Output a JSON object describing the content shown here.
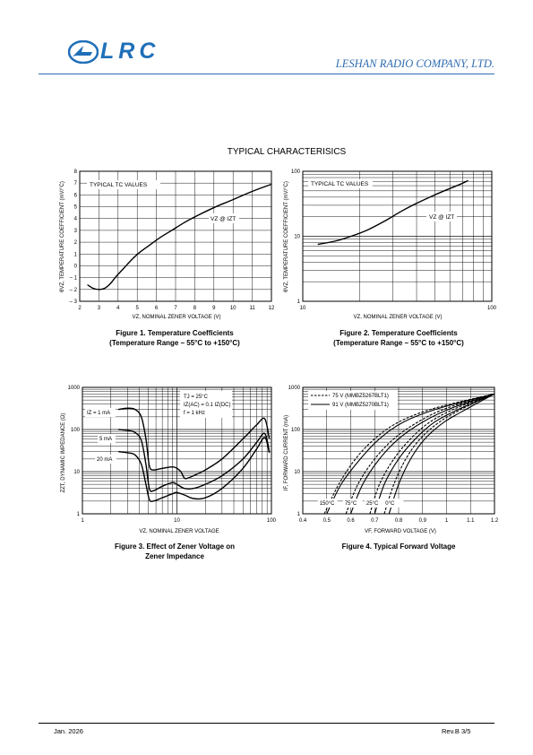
{
  "header": {
    "logo_text": "LRC",
    "company": "LESHAN RADIO COMPANY, LTD."
  },
  "section_title": "TYPICAL CHARACTERISICS",
  "figures": {
    "fig1": {
      "caption_line1": "Figure 1. Temperature Coefficients",
      "caption_line2": "(Temperature Range – 55°C to +150°C)"
    },
    "fig2": {
      "caption_line1": "Figure 2. Temperature Coefficients",
      "caption_line2": "(Temperature Range – 55°C to +150°C)"
    },
    "fig3": {
      "caption_line1": "Figure 3. Effect of Zener Voltage on",
      "caption_line2": "Zener Impedance"
    },
    "fig4": {
      "caption_line1": "Figure 4. Typical Forward Voltage"
    }
  },
  "footer": {
    "date": "Jan. 2026",
    "revision": "Rev.B  3/5"
  },
  "chart_data": [
    {
      "type": "line",
      "title": "",
      "xlabel": "VZ, NOMINAL ZENER VOLTAGE (V)",
      "ylabel": "θVZ, TEMPERATURE COEFFICIENT (mV/°C)",
      "xlim": [
        2,
        12
      ],
      "ylim": [
        -3,
        8
      ],
      "xticks": [
        2,
        3,
        4,
        5,
        6,
        7,
        8,
        9,
        10,
        11,
        12
      ],
      "yticks": [
        -3,
        -2,
        -1,
        0,
        1,
        2,
        3,
        4,
        5,
        6,
        7,
        8
      ],
      "grid": true,
      "annotations": [
        "TYPICAL TC VALUES",
        "VZ @ IZT"
      ],
      "series": [
        {
          "x": [
            2.4,
            2.7,
            3.0,
            3.3,
            3.6,
            3.9,
            4.3,
            4.7,
            5.1,
            5.6,
            6.2,
            6.8,
            7.5,
            8.2,
            9.1,
            10,
            11,
            12
          ],
          "values": [
            -1.6,
            -1.9,
            -2.0,
            -1.9,
            -1.5,
            -0.9,
            -0.2,
            0.5,
            1.1,
            1.7,
            2.4,
            3.0,
            3.7,
            4.3,
            5.0,
            5.6,
            6.3,
            6.9
          ]
        }
      ]
    },
    {
      "type": "line",
      "title": "",
      "xlabel": "VZ, NOMINAL ZENER VOLTAGE (V)",
      "ylabel": "θVZ, TEMPERATURE COEFFICIENT (mV/°C)",
      "xscale": "log",
      "yscale": "log",
      "xlim": [
        10,
        100
      ],
      "ylim": [
        1,
        100
      ],
      "xticks": [
        10,
        100
      ],
      "yticks": [
        1,
        10,
        100
      ],
      "grid": true,
      "annotations": [
        "TYPICAL TC VALUES",
        "VZ @ IZT"
      ],
      "series": [
        {
          "x": [
            12,
            15,
            18,
            22,
            27,
            33,
            39,
            47,
            56,
            68,
            75
          ],
          "values": [
            7.5,
            8.5,
            10,
            12.5,
            17,
            24,
            31,
            40,
            50,
            63,
            72
          ]
        }
      ]
    },
    {
      "type": "line",
      "title": "",
      "xlabel": "VZ, NOMINAL ZENER VOLTAGE",
      "ylabel": "ZZT, DYNAMIC IMPEDANCE (Ω)",
      "xscale": "log",
      "yscale": "log",
      "xlim": [
        1,
        100
      ],
      "ylim": [
        1,
        1000
      ],
      "xticks": [
        1,
        10,
        100
      ],
      "yticks": [
        1,
        10,
        100,
        1000
      ],
      "grid": true,
      "annotations": [
        "TJ = 25°C",
        "IZ(AC) = 0.1 IZ(DC)",
        "f = 1 kHz"
      ],
      "series": [
        {
          "name": "IZ = 1 mA",
          "x": [
            2.4,
            3,
            3.6,
            4.2,
            4.7,
            5.1,
            5.6,
            7,
            9,
            10,
            11,
            12,
            13,
            15,
            20,
            30,
            50,
            70,
            85,
            95
          ],
          "values": [
            300,
            320,
            300,
            200,
            60,
            14,
            11,
            12,
            13,
            12,
            10,
            7,
            7,
            8,
            11,
            20,
            60,
            130,
            180,
            60
          ]
        },
        {
          "name": "5 mA",
          "x": [
            2.4,
            3,
            3.6,
            4.2,
            4.7,
            5.1,
            5.6,
            7,
            9,
            10,
            12,
            15,
            20,
            30,
            50,
            70,
            85,
            95
          ],
          "values": [
            100,
            95,
            85,
            55,
            15,
            4,
            3.5,
            4.5,
            5.5,
            5,
            4,
            4,
            5,
            8,
            20,
            50,
            80,
            30
          ]
        },
        {
          "name": "20 mA",
          "x": [
            2.4,
            3,
            3.6,
            4.2,
            4.7,
            5.1,
            5.6,
            7,
            9,
            10,
            12,
            15,
            20,
            30,
            50,
            70,
            85,
            95
          ],
          "values": [
            30,
            28,
            25,
            15,
            5,
            2.2,
            2.0,
            2.4,
            3.0,
            3.2,
            2.8,
            2.3,
            2.4,
            4,
            12,
            35,
            65,
            28
          ]
        }
      ]
    },
    {
      "type": "line",
      "title": "",
      "xlabel": "VF, FORWARD VOLTAGE (V)",
      "ylabel": "IF, FORWARD CURRENT (mA)",
      "yscale": "log",
      "xlim": [
        0.4,
        1.2
      ],
      "ylim": [
        1,
        1000
      ],
      "xticks": [
        0.4,
        0.5,
        0.6,
        0.7,
        0.8,
        0.9,
        1.0,
        1.1,
        1.2
      ],
      "yticks": [
        1,
        10,
        100,
        1000
      ],
      "grid": true,
      "legend": "top-left",
      "annotations": [
        "150°C",
        "75°C",
        "25°C",
        "0°C"
      ],
      "series": [
        {
          "name": "75 V (MMBZ5267BLT1)",
          "style": "dashed",
          "temperature": "150°C",
          "x": [
            0.49,
            0.55,
            0.62,
            0.7,
            0.8,
            0.95,
            1.2
          ],
          "values": [
            1,
            5,
            20,
            60,
            150,
            320,
            700
          ]
        },
        {
          "name": "91 V (MMBZ5270BLT1)",
          "style": "solid",
          "temperature": "150°C",
          "x": [
            0.5,
            0.56,
            0.64,
            0.72,
            0.82,
            0.97,
            1.2
          ],
          "values": [
            1,
            5,
            20,
            60,
            150,
            320,
            700
          ]
        },
        {
          "name": "75 V (MMBZ5267BLT1)",
          "style": "dashed",
          "temperature": "75°C",
          "x": [
            0.58,
            0.63,
            0.7,
            0.78,
            0.88,
            1.0,
            1.2
          ],
          "values": [
            1,
            5,
            20,
            60,
            150,
            320,
            700
          ]
        },
        {
          "name": "91 V (MMBZ5270BLT1)",
          "style": "solid",
          "temperature": "75°C",
          "x": [
            0.6,
            0.65,
            0.72,
            0.8,
            0.9,
            1.02,
            1.2
          ],
          "values": [
            1,
            5,
            20,
            60,
            150,
            320,
            700
          ]
        },
        {
          "name": "75 V (MMBZ5267BLT1)",
          "style": "dashed",
          "temperature": "25°C",
          "x": [
            0.68,
            0.72,
            0.78,
            0.85,
            0.93,
            1.04,
            1.2
          ],
          "values": [
            1,
            5,
            20,
            60,
            150,
            320,
            700
          ]
        },
        {
          "name": "91 V (MMBZ5270BLT1)",
          "style": "solid",
          "temperature": "25°C",
          "x": [
            0.7,
            0.74,
            0.8,
            0.87,
            0.95,
            1.06,
            1.2
          ],
          "values": [
            1,
            5,
            20,
            60,
            150,
            320,
            700
          ]
        },
        {
          "name": "75 V (MMBZ5267BLT1)",
          "style": "dashed",
          "temperature": "0°C",
          "x": [
            0.74,
            0.78,
            0.83,
            0.89,
            0.97,
            1.07,
            1.2
          ],
          "values": [
            1,
            5,
            20,
            60,
            150,
            320,
            700
          ]
        },
        {
          "name": "91 V (MMBZ5270BLT1)",
          "style": "solid",
          "temperature": "0°C",
          "x": [
            0.76,
            0.8,
            0.85,
            0.91,
            0.99,
            1.09,
            1.2
          ],
          "values": [
            1,
            5,
            20,
            60,
            150,
            320,
            700
          ]
        }
      ]
    }
  ]
}
